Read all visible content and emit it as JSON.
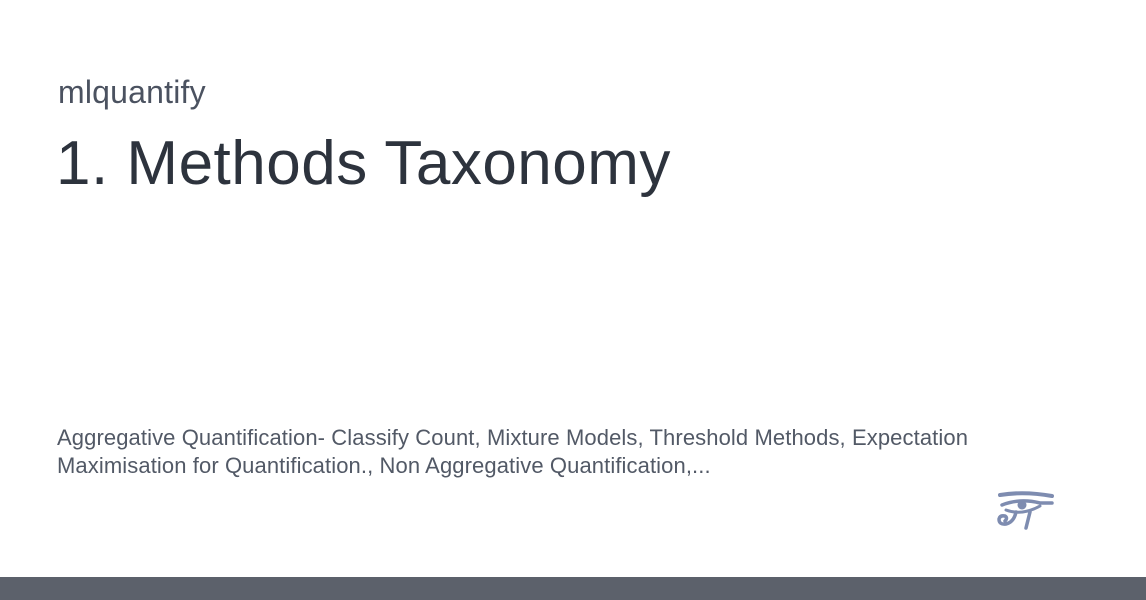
{
  "site": {
    "name": "mlquantify"
  },
  "page": {
    "title": "1. Methods Taxonomy",
    "description": "Aggregative Quantification- Classify Count, Mixture Models, Threshold Methods, Expectation Maximisation for Quantification., Non Aggregative Quantification,..."
  },
  "logo": {
    "icon": "eye-of-horus-icon",
    "color": "#7e8cb0"
  },
  "colors": {
    "background": "#ffffff",
    "title": "#2d333d",
    "site_name": "#4b5260",
    "description": "#525966",
    "bottom_bar": "#5c616b"
  }
}
